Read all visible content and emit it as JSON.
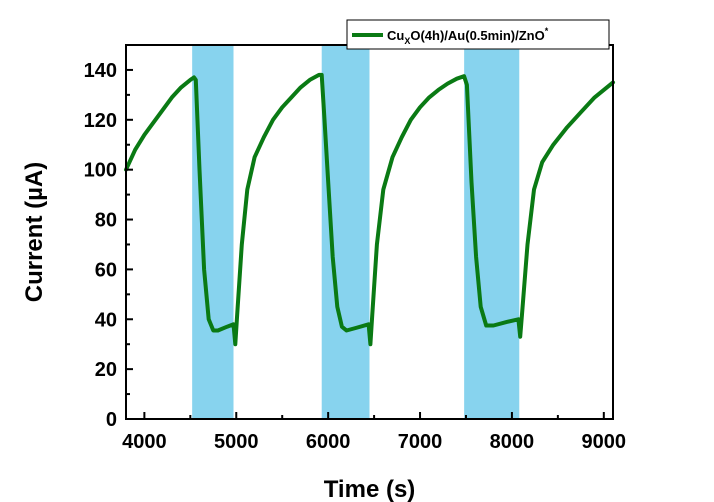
{
  "chart_data": {
    "type": "line",
    "xlabel": "Time (s)",
    "ylabel": "Current (µA)",
    "xlim": [
      3800,
      9100
    ],
    "ylim": [
      0,
      150
    ],
    "x_ticks": [
      4000,
      5000,
      6000,
      7000,
      8000,
      9000
    ],
    "y_ticks": [
      0,
      20,
      40,
      60,
      80,
      100,
      120,
      140
    ],
    "grid": false,
    "legend_position": "top-right",
    "shaded_intervals": [
      [
        4520,
        4970
      ],
      [
        5930,
        6450
      ],
      [
        7480,
        8080
      ]
    ],
    "shade_color": "#87d3ee",
    "series": [
      {
        "name_parts": {
          "base": "Cu",
          "sub": "X",
          "rest": "O(4h)/Au(0.5min)/ZnO",
          "sup": "*"
        },
        "color": "#0a7a14",
        "points": [
          [
            3800,
            100
          ],
          [
            3900,
            108
          ],
          [
            4000,
            114
          ],
          [
            4100,
            119
          ],
          [
            4200,
            124
          ],
          [
            4300,
            129
          ],
          [
            4400,
            133
          ],
          [
            4500,
            136
          ],
          [
            4540,
            137
          ],
          [
            4560,
            136
          ],
          [
            4600,
            100
          ],
          [
            4650,
            60
          ],
          [
            4700,
            40
          ],
          [
            4750,
            35.5
          ],
          [
            4800,
            35.5
          ],
          [
            4900,
            37
          ],
          [
            4970,
            38
          ],
          [
            4990,
            30
          ],
          [
            5010,
            42
          ],
          [
            5060,
            70
          ],
          [
            5120,
            92
          ],
          [
            5200,
            105
          ],
          [
            5300,
            113
          ],
          [
            5400,
            120
          ],
          [
            5500,
            125
          ],
          [
            5600,
            129
          ],
          [
            5700,
            133
          ],
          [
            5800,
            136
          ],
          [
            5900,
            138
          ],
          [
            5930,
            138
          ],
          [
            5960,
            120
          ],
          [
            6000,
            95
          ],
          [
            6050,
            65
          ],
          [
            6100,
            45
          ],
          [
            6150,
            37
          ],
          [
            6200,
            35.5
          ],
          [
            6300,
            36.5
          ],
          [
            6440,
            38
          ],
          [
            6460,
            30
          ],
          [
            6480,
            42
          ],
          [
            6530,
            70
          ],
          [
            6600,
            92
          ],
          [
            6700,
            105
          ],
          [
            6800,
            113
          ],
          [
            6900,
            120
          ],
          [
            7000,
            125
          ],
          [
            7100,
            129
          ],
          [
            7200,
            132
          ],
          [
            7300,
            134.5
          ],
          [
            7400,
            136.5
          ],
          [
            7480,
            137.5
          ],
          [
            7510,
            134
          ],
          [
            7560,
            95
          ],
          [
            7610,
            65
          ],
          [
            7660,
            45
          ],
          [
            7720,
            37.5
          ],
          [
            7800,
            37.5
          ],
          [
            7950,
            39
          ],
          [
            8070,
            40
          ],
          [
            8090,
            33
          ],
          [
            8110,
            42
          ],
          [
            8170,
            70
          ],
          [
            8240,
            92
          ],
          [
            8330,
            103
          ],
          [
            8450,
            110
          ],
          [
            8600,
            117
          ],
          [
            8750,
            123
          ],
          [
            8900,
            129
          ],
          [
            9000,
            132
          ],
          [
            9100,
            135
          ]
        ]
      }
    ]
  }
}
